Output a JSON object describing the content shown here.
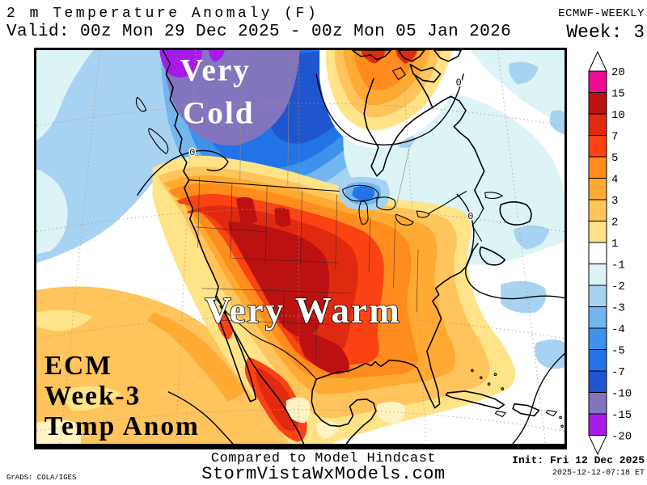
{
  "header": {
    "title": "2 m Temperature Anomaly (F)",
    "model": "ECMWF-WEEKLY",
    "valid": "Valid: 00z Mon 29 Dec 2025 - 00z Mon 05 Jan 2026",
    "week": "Week: 3"
  },
  "map": {
    "cold_label_line1": "Very",
    "cold_label_line2": "Cold",
    "warm_label": "Very Warm",
    "corner_lines": {
      "0": "ECM",
      "1": "Week-3",
      "2": "Temp Anom"
    },
    "zero_label": "0"
  },
  "colorbar": {
    "levels": [
      20,
      15,
      10,
      7,
      5,
      4,
      3,
      2,
      1,
      -1,
      -2,
      -3,
      -4,
      -5,
      -7,
      -10,
      -15,
      -20
    ],
    "colors": [
      "#ee0c94",
      "#bb1211",
      "#e02a10",
      "#fa4212",
      "#ff8c1c",
      "#ffaa33",
      "#ffc45c",
      "#ffe388",
      "#ffffff",
      "#dcf4f6",
      "#a8d2f2",
      "#72b6ef",
      "#3e92ec",
      "#2173e6",
      "#1f55ce",
      "#8374be",
      "#a81ae8"
    ]
  },
  "palette": {
    "magenta": "#ee0c94",
    "dark_red": "#bb1211",
    "red": "#e02a10",
    "red_orange": "#fa4212",
    "deep_orange": "#ff8c1c",
    "orange": "#ffaa33",
    "light_orange": "#ffc45c",
    "yellow": "#ffe388",
    "pale_yellow": "#fff3c4",
    "white": "#ffffff",
    "pale_cyan": "#dcf4f6",
    "light_blue": "#a8d2f2",
    "sky_blue": "#72b6ef",
    "mid_blue": "#3e92ec",
    "royal_blue": "#2173e6",
    "deep_blue": "#1f55ce",
    "slate_purple": "#8374be",
    "violet": "#a81ae8"
  },
  "footer": {
    "hindcast": "Compared to Model Hindcast",
    "site": "StormVistaWxModels.com",
    "grads": "GrADS: COLA/IGES",
    "init": "Init: Fri 12 Dec 2025",
    "init_time": "2025-12-12-07:18 ET"
  }
}
